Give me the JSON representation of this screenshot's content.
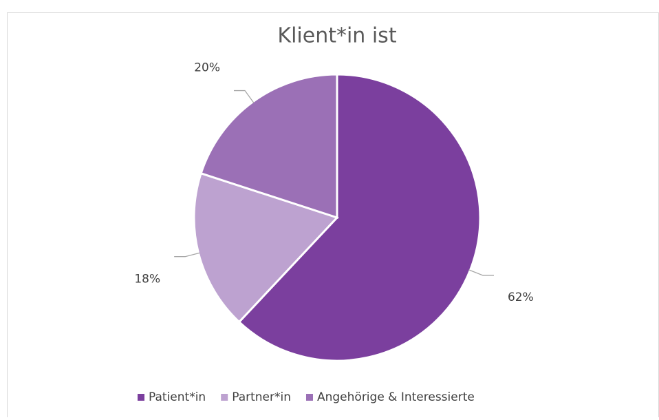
{
  "chart_data": {
    "type": "pie",
    "title": "Klient*in ist",
    "categories": [
      "Patient*in",
      "Partner*in",
      "Angehörige & Interessierte"
    ],
    "values": [
      62,
      18,
      20
    ],
    "value_labels": [
      "62%",
      "18%",
      "20%"
    ],
    "colors": [
      "#7b3f9e",
      "#bda2d0",
      "#9b70b6"
    ],
    "legend": "bottom"
  }
}
